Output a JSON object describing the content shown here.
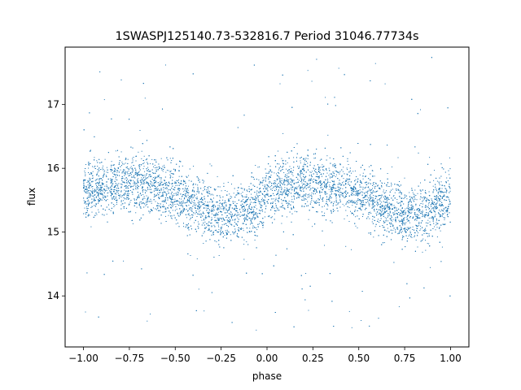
{
  "chart_data": {
    "type": "scatter",
    "title": "1SWASPJ125140.73-532816.7 Period 31046.77734s",
    "xlabel": "phase",
    "ylabel": "flux",
    "xlim": [
      -1.1,
      1.1
    ],
    "ylim": [
      13.2,
      17.9
    ],
    "xticks": [
      -1.0,
      -0.75,
      -0.5,
      -0.25,
      0.0,
      0.25,
      0.5,
      0.75,
      1.0
    ],
    "xtick_labels": [
      "−1.00",
      "−0.75",
      "−0.50",
      "−0.25",
      "0.00",
      "0.25",
      "0.50",
      "0.75",
      "1.00"
    ],
    "yticks": [
      14,
      15,
      16,
      17
    ],
    "ytick_labels": [
      "14",
      "15",
      "16",
      "17"
    ],
    "grid": false,
    "marker_color": "#1f77b4",
    "series": [
      {
        "curve": {
          "x": [
            -1.0,
            -0.875,
            -0.75,
            -0.625,
            -0.5,
            -0.375,
            -0.25,
            -0.125,
            0.0,
            0.125,
            0.25,
            0.375,
            0.5,
            0.625,
            0.75,
            0.875,
            1.0
          ],
          "y": [
            15.62,
            15.72,
            15.78,
            15.73,
            15.58,
            15.42,
            15.25,
            15.32,
            15.55,
            15.72,
            15.78,
            15.73,
            15.58,
            15.42,
            15.25,
            15.32,
            15.55
          ]
        },
        "scatter_sigma": 0.22,
        "outlier_range": [
          13.45,
          17.75
        ],
        "n_points": 9000
      }
    ]
  }
}
